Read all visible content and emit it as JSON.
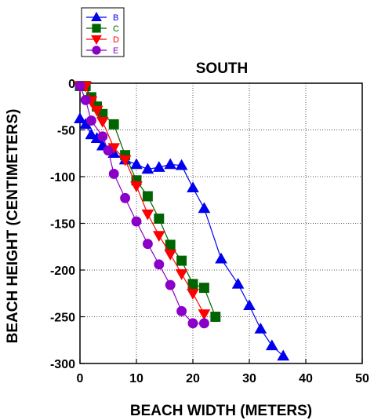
{
  "chart_data": {
    "type": "line",
    "title": "SOUTH",
    "xlabel": "BEACH WIDTH (METERS)",
    "ylabel": "BEACH HEIGHT (CENTIMETERS)",
    "xlim": [
      0,
      50
    ],
    "ylim": [
      -300,
      0
    ],
    "x_ticks": [
      0,
      10,
      20,
      30,
      40,
      50
    ],
    "y_ticks": [
      0,
      -50,
      -100,
      -150,
      -200,
      -250,
      -300
    ],
    "grid": "dotted",
    "legend_position": "top-left, outside plot",
    "series": [
      {
        "name": "B",
        "color": "#0000ee",
        "marker": "triangle-up",
        "points": [
          [
            0,
            -38
          ],
          [
            1,
            -44
          ],
          [
            2,
            -55
          ],
          [
            3,
            -59
          ],
          [
            4,
            -67
          ],
          [
            6,
            -75
          ],
          [
            8,
            -82
          ],
          [
            10,
            -87
          ],
          [
            12,
            -92
          ],
          [
            14,
            -90
          ],
          [
            16,
            -87
          ],
          [
            18,
            -88
          ],
          [
            20,
            -112
          ],
          [
            22,
            -134
          ],
          [
            25,
            -188
          ],
          [
            28,
            -215
          ],
          [
            30,
            -238
          ],
          [
            32,
            -263
          ],
          [
            34,
            -281
          ],
          [
            36,
            -292
          ]
        ]
      },
      {
        "name": "C",
        "color": "#006400",
        "marker": "square",
        "points": [
          [
            0,
            -3
          ],
          [
            1,
            -3
          ],
          [
            2,
            -15
          ],
          [
            3,
            -25
          ],
          [
            4,
            -33
          ],
          [
            6,
            -44
          ],
          [
            8,
            -77
          ],
          [
            10,
            -104
          ],
          [
            12,
            -121
          ],
          [
            14,
            -145
          ],
          [
            16,
            -173
          ],
          [
            18,
            -190
          ],
          [
            20,
            -215
          ],
          [
            22,
            -219
          ],
          [
            24,
            -250
          ]
        ]
      },
      {
        "name": "D",
        "color": "#ff0000",
        "marker": "triangle-down",
        "points": [
          [
            0,
            -3
          ],
          [
            1,
            -3
          ],
          [
            2,
            -19
          ],
          [
            3,
            -29
          ],
          [
            4,
            -41
          ],
          [
            6,
            -69
          ],
          [
            8,
            -82
          ],
          [
            10,
            -110
          ],
          [
            12,
            -140
          ],
          [
            14,
            -163
          ],
          [
            16,
            -183
          ],
          [
            18,
            -204
          ],
          [
            20,
            -225
          ],
          [
            22,
            -247
          ]
        ]
      },
      {
        "name": "E",
        "color": "#8b00c8",
        "marker": "circle",
        "points": [
          [
            0,
            -3
          ],
          [
            1,
            -18
          ],
          [
            2,
            -40
          ],
          [
            4,
            -57
          ],
          [
            5,
            -72
          ],
          [
            6,
            -97
          ],
          [
            8,
            -123
          ],
          [
            10,
            -148
          ],
          [
            12,
            -172
          ],
          [
            14,
            -194
          ],
          [
            16,
            -216
          ],
          [
            18,
            -244
          ],
          [
            20,
            -257
          ],
          [
            22,
            -257
          ]
        ]
      }
    ]
  }
}
